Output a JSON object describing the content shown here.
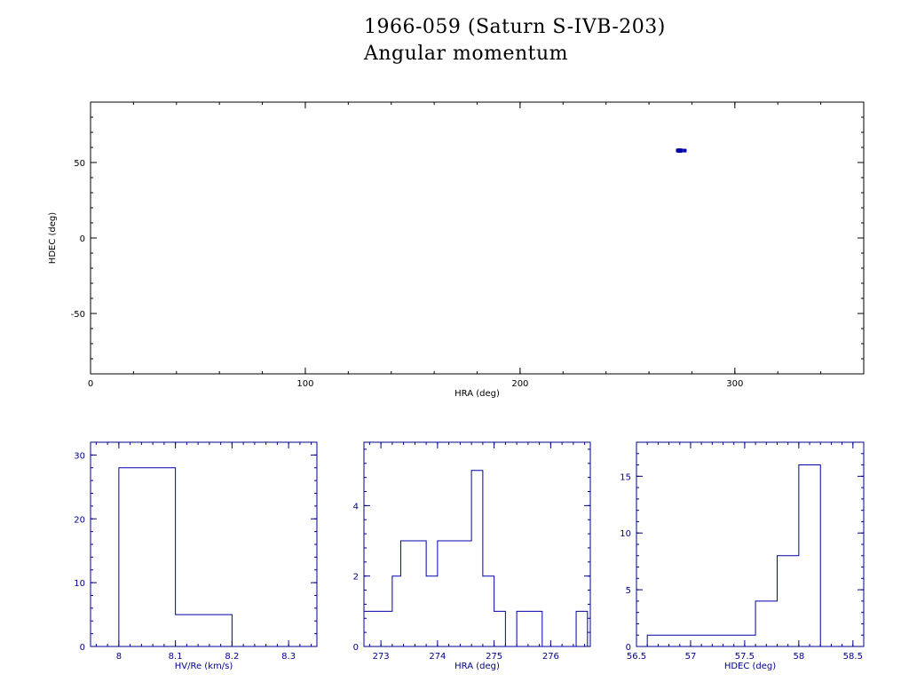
{
  "title": "1966-059 (Saturn S-IVB-203)",
  "subtitle": "Angular momentum",
  "colors": {
    "axes": "#000000",
    "data": "#0000aa",
    "hist_axes": "#00008b"
  },
  "chart_data": [
    {
      "type": "scatter",
      "xlabel": "HRA (deg)",
      "ylabel": "HDEC (deg)",
      "xlim": [
        0,
        360
      ],
      "ylim": [
        -90,
        90
      ],
      "xticks": [
        0,
        100,
        200,
        300
      ],
      "yticks": [
        -50,
        0,
        50
      ],
      "points": [
        {
          "x": 273.4,
          "y": 58.0
        },
        {
          "x": 273.7,
          "y": 57.9
        },
        {
          "x": 274.0,
          "y": 58.1
        },
        {
          "x": 274.3,
          "y": 58.0
        },
        {
          "x": 274.6,
          "y": 58.1
        },
        {
          "x": 274.8,
          "y": 57.8
        },
        {
          "x": 275.0,
          "y": 58.0
        },
        {
          "x": 273.9,
          "y": 57.7
        },
        {
          "x": 274.5,
          "y": 57.6
        },
        {
          "x": 276.7,
          "y": 57.9
        }
      ]
    },
    {
      "type": "histogram",
      "xlabel": "HV/Re (km/s)",
      "xlim": [
        7.95,
        8.35
      ],
      "ylim": [
        0,
        32
      ],
      "xticks": [
        8.0,
        8.1,
        8.2,
        8.3
      ],
      "xtick_labels": [
        "8",
        "8.1",
        "8.2",
        "8.3"
      ],
      "yticks": [
        0,
        10,
        20,
        30
      ],
      "bins": [
        {
          "x0": 8.0,
          "x1": 8.1,
          "count": 28
        },
        {
          "x0": 8.1,
          "x1": 8.2,
          "count": 5
        }
      ]
    },
    {
      "type": "histogram",
      "xlabel": "HRA (deg)",
      "xlim": [
        272.7,
        276.7
      ],
      "ylim": [
        0,
        5.8
      ],
      "xticks": [
        273,
        274,
        275,
        276
      ],
      "xtick_labels": [
        "273",
        "274",
        "275",
        "276"
      ],
      "yticks": [
        0,
        2,
        4
      ],
      "bins": [
        {
          "x0": 272.7,
          "x1": 273.2,
          "count": 1
        },
        {
          "x0": 273.2,
          "x1": 273.35,
          "count": 2
        },
        {
          "x0": 273.35,
          "x1": 273.8,
          "count": 3
        },
        {
          "x0": 273.8,
          "x1": 274.0,
          "count": 2
        },
        {
          "x0": 274.0,
          "x1": 274.6,
          "count": 3
        },
        {
          "x0": 274.6,
          "x1": 274.8,
          "count": 5
        },
        {
          "x0": 274.8,
          "x1": 275.0,
          "count": 2
        },
        {
          "x0": 275.0,
          "x1": 275.2,
          "count": 1
        },
        {
          "x0": 275.2,
          "x1": 275.4,
          "count": 0
        },
        {
          "x0": 275.4,
          "x1": 275.85,
          "count": 1
        },
        {
          "x0": 275.85,
          "x1": 276.45,
          "count": 0
        },
        {
          "x0": 276.45,
          "x1": 276.65,
          "count": 1
        }
      ]
    },
    {
      "type": "histogram",
      "xlabel": "HDEC (deg)",
      "xlim": [
        56.5,
        58.6
      ],
      "ylim": [
        0,
        18
      ],
      "xticks": [
        56.5,
        57.0,
        57.5,
        58.0,
        58.5
      ],
      "xtick_labels": [
        "56.5",
        "57",
        "57.5",
        "58",
        "58.5"
      ],
      "yticks": [
        0,
        5,
        10,
        15
      ],
      "ytick_labels": [
        "0",
        "5",
        "10",
        "15"
      ],
      "bins": [
        {
          "x0": 56.6,
          "x1": 57.6,
          "count": 1
        },
        {
          "x0": 57.6,
          "x1": 57.8,
          "count": 4
        },
        {
          "x0": 57.8,
          "x1": 58.0,
          "count": 8
        },
        {
          "x0": 58.0,
          "x1": 58.2,
          "count": 16
        }
      ]
    }
  ]
}
